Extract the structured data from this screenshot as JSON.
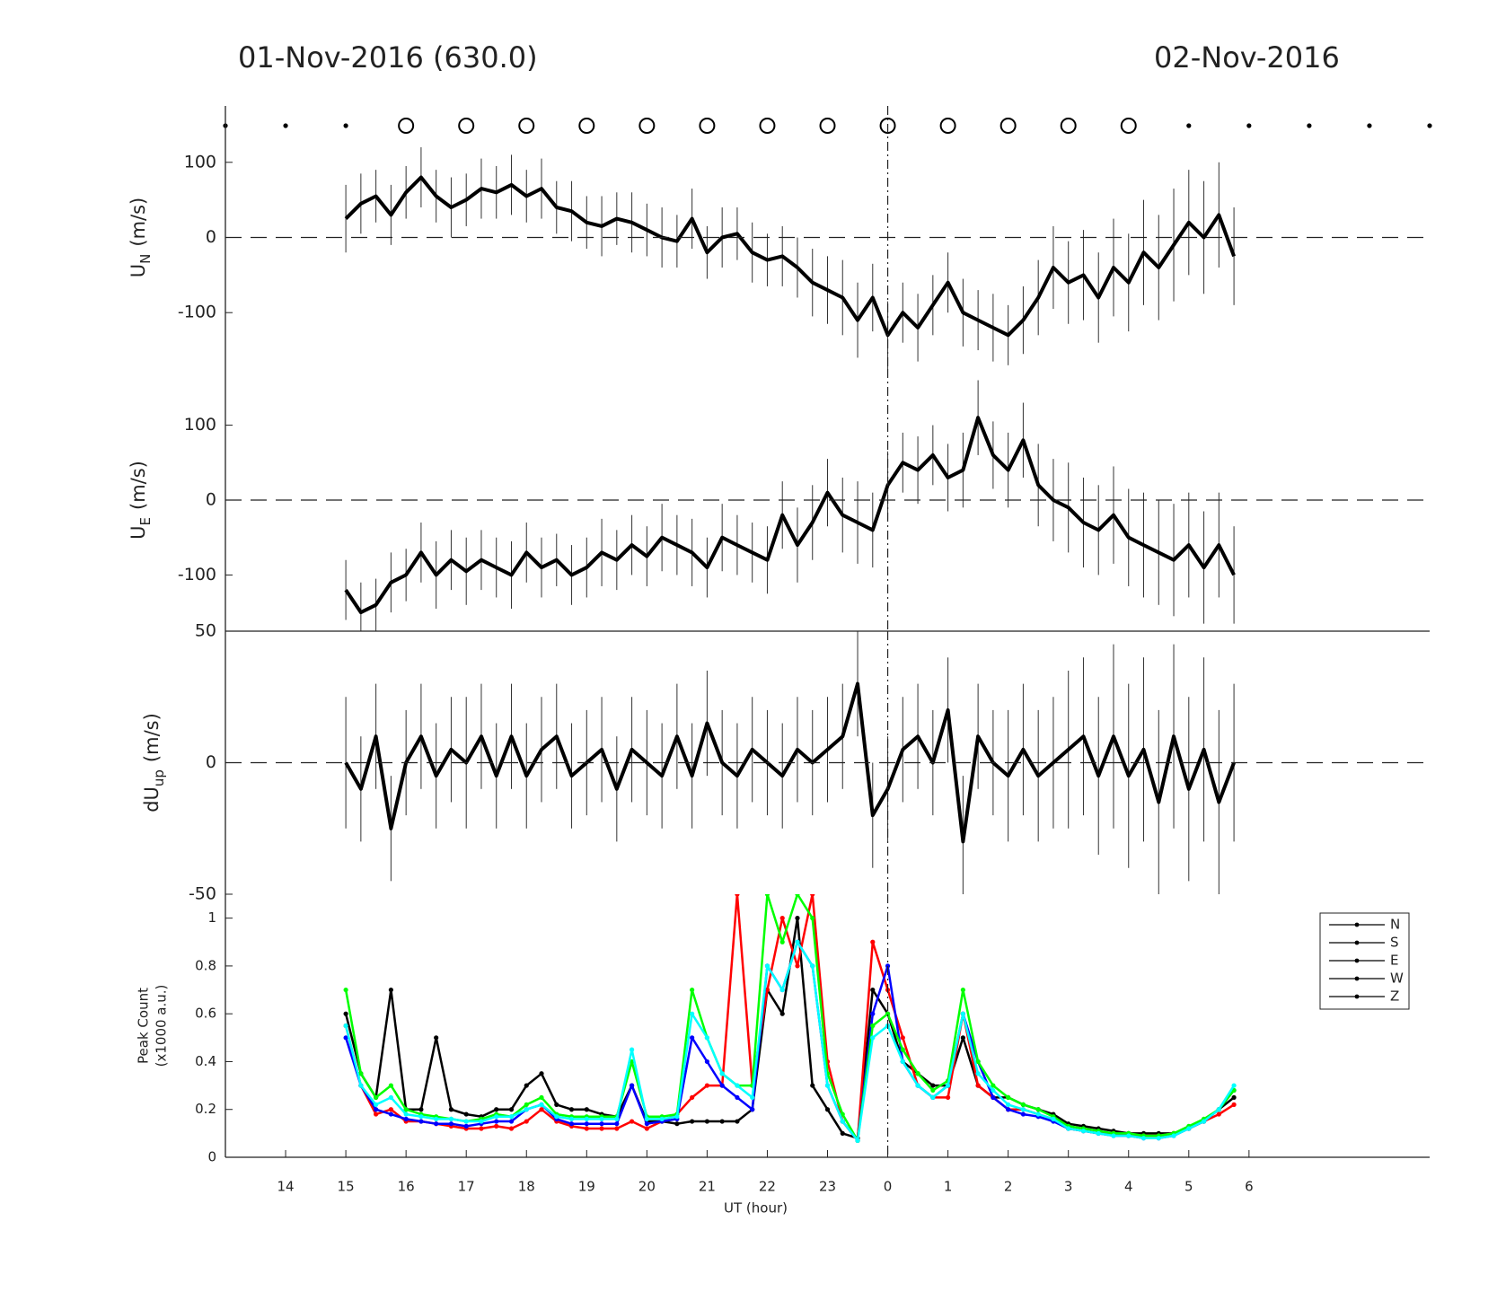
{
  "titles": {
    "left": "01-Nov-2016 (630.0)",
    "right": "02-Nov-2016"
  },
  "top_markers": {
    "dots": [
      13,
      14,
      15,
      29,
      30,
      31,
      32,
      33
    ],
    "circles": [
      16,
      17,
      18,
      19,
      20,
      21,
      22,
      23,
      24,
      25,
      26,
      27,
      28
    ]
  },
  "chart_data": [
    {
      "type": "errorbar-line",
      "ylabel": {
        "main": "U",
        "sub": "N",
        "unit": "(m/s)"
      },
      "xlim": [
        13,
        33
      ],
      "ylim": [
        -175,
        175
      ],
      "yticks": [
        -100,
        0,
        100
      ],
      "hline": 0,
      "vline": 24,
      "x": [
        15,
        15.25,
        15.5,
        15.75,
        16,
        16.25,
        16.5,
        16.75,
        17,
        17.25,
        17.5,
        17.75,
        18,
        18.25,
        18.5,
        18.75,
        19,
        19.25,
        19.5,
        19.75,
        20,
        20.25,
        20.5,
        20.75,
        21,
        21.25,
        21.5,
        21.75,
        22,
        22.25,
        22.5,
        22.75,
        23,
        23.25,
        23.5,
        23.75,
        24,
        24.25,
        24.5,
        24.75,
        25,
        25.25,
        25.5,
        25.75,
        26,
        26.25,
        26.5,
        26.75,
        27,
        27.25,
        27.5,
        27.75,
        28,
        28.25,
        28.5,
        28.75,
        29,
        29.25,
        29.5,
        29.75
      ],
      "series": [
        {
          "color": "#000000",
          "values": [
            25,
            45,
            55,
            30,
            60,
            80,
            55,
            40,
            50,
            65,
            60,
            70,
            55,
            65,
            40,
            35,
            20,
            15,
            25,
            20,
            10,
            0,
            -5,
            25,
            -20,
            0,
            5,
            -20,
            -30,
            -25,
            -40,
            -60,
            -70,
            -80,
            -110,
            -80,
            -130,
            -100,
            -120,
            -90,
            -60,
            -100,
            -110,
            -120,
            -130,
            -110,
            -80,
            -40,
            -60,
            -50,
            -80,
            -40,
            -60,
            -20,
            -40,
            -10,
            20,
            0,
            30,
            -25
          ],
          "errors": [
            45,
            40,
            35,
            40,
            35,
            40,
            35,
            40,
            35,
            40,
            35,
            40,
            35,
            40,
            35,
            40,
            35,
            40,
            35,
            40,
            35,
            40,
            35,
            40,
            35,
            40,
            35,
            40,
            35,
            40,
            40,
            45,
            45,
            50,
            50,
            45,
            45,
            40,
            45,
            40,
            40,
            45,
            40,
            45,
            40,
            45,
            50,
            55,
            55,
            60,
            60,
            65,
            65,
            70,
            70,
            75,
            70,
            75,
            70,
            65
          ]
        }
      ]
    },
    {
      "type": "errorbar-line",
      "ylabel": {
        "main": "U",
        "sub": "E",
        "unit": "(m/s)"
      },
      "xlim": [
        13,
        33
      ],
      "ylim": [
        -175,
        175
      ],
      "yticks": [
        -100,
        0,
        100
      ],
      "hline": 0,
      "vline": 24,
      "x": [
        15,
        15.25,
        15.5,
        15.75,
        16,
        16.25,
        16.5,
        16.75,
        17,
        17.25,
        17.5,
        17.75,
        18,
        18.25,
        18.5,
        18.75,
        19,
        19.25,
        19.5,
        19.75,
        20,
        20.25,
        20.5,
        20.75,
        21,
        21.25,
        21.5,
        21.75,
        22,
        22.25,
        22.5,
        22.75,
        23,
        23.25,
        23.5,
        23.75,
        24,
        24.25,
        24.5,
        24.75,
        25,
        25.25,
        25.5,
        25.75,
        26,
        26.25,
        26.5,
        26.75,
        27,
        27.25,
        27.5,
        27.75,
        28,
        28.25,
        28.5,
        28.75,
        29,
        29.25,
        29.5,
        29.75
      ],
      "series": [
        {
          "color": "#000000",
          "values": [
            -120,
            -150,
            -140,
            -110,
            -100,
            -70,
            -100,
            -80,
            -95,
            -80,
            -90,
            -100,
            -70,
            -90,
            -80,
            -100,
            -90,
            -70,
            -80,
            -60,
            -75,
            -50,
            -60,
            -70,
            -90,
            -50,
            -60,
            -70,
            -80,
            -20,
            -60,
            -30,
            10,
            -20,
            -30,
            -40,
            20,
            50,
            40,
            60,
            30,
            40,
            110,
            60,
            40,
            80,
            20,
            0,
            -10,
            -30,
            -40,
            -20,
            -50,
            -60,
            -70,
            -80,
            -60,
            -90,
            -60,
            -100
          ],
          "errors": [
            40,
            40,
            35,
            40,
            35,
            40,
            45,
            40,
            45,
            40,
            40,
            45,
            40,
            40,
            35,
            40,
            40,
            45,
            40,
            40,
            40,
            45,
            40,
            45,
            40,
            45,
            40,
            40,
            45,
            45,
            50,
            50,
            45,
            50,
            55,
            50,
            45,
            40,
            45,
            40,
            45,
            50,
            50,
            45,
            50,
            50,
            55,
            55,
            60,
            60,
            60,
            65,
            65,
            70,
            70,
            75,
            70,
            75,
            70,
            65
          ]
        }
      ]
    },
    {
      "type": "errorbar-line",
      "ylabel": {
        "main": "dU",
        "sub": "up",
        "unit": "(m/s)"
      },
      "xlim": [
        13,
        33
      ],
      "ylim": [
        -50,
        50
      ],
      "yticks": [
        -50,
        0,
        50
      ],
      "hline": 0,
      "vline": 24,
      "top_axis": true,
      "x": [
        15,
        15.25,
        15.5,
        15.75,
        16,
        16.25,
        16.5,
        16.75,
        17,
        17.25,
        17.5,
        17.75,
        18,
        18.25,
        18.5,
        18.75,
        19,
        19.25,
        19.5,
        19.75,
        20,
        20.25,
        20.5,
        20.75,
        21,
        21.25,
        21.5,
        21.75,
        22,
        22.25,
        22.5,
        22.75,
        23,
        23.25,
        23.5,
        23.75,
        24,
        24.25,
        24.5,
        24.75,
        25,
        25.25,
        25.5,
        25.75,
        26,
        26.25,
        26.5,
        26.75,
        27,
        27.25,
        27.5,
        27.75,
        28,
        28.25,
        28.5,
        28.75,
        29,
        29.25,
        29.5,
        29.75
      ],
      "series": [
        {
          "color": "#000000",
          "values": [
            0,
            -10,
            10,
            -25,
            0,
            10,
            -5,
            5,
            0,
            10,
            -5,
            10,
            -5,
            5,
            10,
            -5,
            0,
            5,
            -10,
            5,
            0,
            -5,
            10,
            -5,
            15,
            0,
            -5,
            5,
            0,
            -5,
            5,
            0,
            5,
            10,
            30,
            -20,
            -10,
            5,
            10,
            0,
            20,
            -30,
            10,
            0,
            -5,
            5,
            -5,
            0,
            5,
            10,
            -5,
            10,
            -5,
            5,
            -15,
            10,
            -10,
            5,
            -15,
            0
          ],
          "errors": [
            25,
            20,
            20,
            20,
            20,
            20,
            20,
            20,
            25,
            20,
            20,
            20,
            20,
            20,
            20,
            20,
            20,
            20,
            20,
            20,
            20,
            20,
            20,
            20,
            20,
            20,
            20,
            20,
            20,
            20,
            20,
            20,
            20,
            20,
            20,
            20,
            20,
            20,
            20,
            20,
            20,
            25,
            20,
            20,
            25,
            25,
            25,
            25,
            30,
            30,
            30,
            35,
            35,
            35,
            35,
            35,
            35,
            35,
            35,
            30
          ]
        }
      ]
    },
    {
      "type": "line",
      "ylabel": {
        "line1": "Peak Count",
        "line2": "(x1000 a.u.)"
      },
      "xlabel": "UT (hour)",
      "xlim": [
        13,
        33
      ],
      "ylim": [
        0,
        1.1
      ],
      "yticks": [
        0,
        0.2,
        0.4,
        0.6,
        0.8,
        1
      ],
      "vline": 24,
      "xticks": [
        14,
        15,
        16,
        17,
        18,
        19,
        20,
        21,
        22,
        23,
        {
          "value": 24,
          "label": "0"
        },
        {
          "value": 25,
          "label": "1"
        },
        {
          "value": 26,
          "label": "2"
        },
        {
          "value": 27,
          "label": "3"
        },
        {
          "value": 28,
          "label": "4"
        },
        {
          "value": 29,
          "label": "5"
        },
        {
          "value": 30,
          "label": "6"
        }
      ],
      "legend": "upper right",
      "legend_color": "#000000",
      "x": [
        15,
        15.25,
        15.5,
        15.75,
        16,
        16.25,
        16.5,
        16.75,
        17,
        17.25,
        17.5,
        17.75,
        18,
        18.25,
        18.5,
        18.75,
        19,
        19.25,
        19.5,
        19.75,
        20,
        20.25,
        20.5,
        20.75,
        21,
        21.25,
        21.5,
        21.75,
        22,
        22.25,
        22.5,
        22.75,
        23,
        23.25,
        23.5,
        23.75,
        24,
        24.25,
        24.5,
        24.75,
        25,
        25.25,
        25.5,
        25.75,
        26,
        26.25,
        26.5,
        26.75,
        27,
        27.25,
        27.5,
        27.75,
        28,
        28.25,
        28.5,
        28.75,
        29,
        29.25,
        29.5,
        29.75
      ],
      "series": [
        {
          "name": "N",
          "color": "#000000",
          "values": [
            0.6,
            0.35,
            0.25,
            0.7,
            0.2,
            0.2,
            0.5,
            0.2,
            0.18,
            0.17,
            0.2,
            0.2,
            0.3,
            0.35,
            0.22,
            0.2,
            0.2,
            0.18,
            0.17,
            0.3,
            0.15,
            0.15,
            0.14,
            0.15,
            0.15,
            0.15,
            0.15,
            0.2,
            0.7,
            0.6,
            1.0,
            0.3,
            0.2,
            0.1,
            0.08,
            0.7,
            0.6,
            0.4,
            0.35,
            0.3,
            0.3,
            0.5,
            0.3,
            0.25,
            0.25,
            0.22,
            0.2,
            0.18,
            0.14,
            0.13,
            0.12,
            0.11,
            0.1,
            0.1,
            0.1,
            0.1,
            0.12,
            0.15,
            0.2,
            0.25
          ]
        },
        {
          "name": "S",
          "color": "#ff0000",
          "values": [
            0.55,
            0.3,
            0.18,
            0.2,
            0.15,
            0.15,
            0.14,
            0.13,
            0.12,
            0.12,
            0.13,
            0.12,
            0.15,
            0.2,
            0.15,
            0.13,
            0.12,
            0.12,
            0.12,
            0.15,
            0.12,
            0.15,
            0.18,
            0.25,
            0.3,
            0.3,
            1.1,
            0.3,
            0.7,
            1.0,
            0.8,
            1.1,
            0.4,
            0.15,
            0.07,
            0.9,
            0.7,
            0.5,
            0.3,
            0.25,
            0.25,
            0.6,
            0.3,
            0.25,
            0.2,
            0.2,
            0.18,
            0.16,
            0.12,
            0.11,
            0.1,
            0.1,
            0.09,
            0.09,
            0.09,
            0.1,
            0.12,
            0.15,
            0.18,
            0.22
          ]
        },
        {
          "name": "E",
          "color": "#0000ff",
          "values": [
            0.5,
            0.3,
            0.2,
            0.18,
            0.16,
            0.15,
            0.14,
            0.14,
            0.13,
            0.14,
            0.15,
            0.15,
            0.2,
            0.22,
            0.16,
            0.14,
            0.14,
            0.14,
            0.14,
            0.3,
            0.14,
            0.15,
            0.16,
            0.5,
            0.4,
            0.3,
            0.25,
            0.2,
            0.8,
            0.7,
            0.9,
            0.8,
            0.3,
            0.15,
            0.07,
            0.6,
            0.8,
            0.4,
            0.3,
            0.25,
            0.3,
            0.6,
            0.4,
            0.25,
            0.2,
            0.18,
            0.17,
            0.15,
            0.12,
            0.11,
            0.1,
            0.09,
            0.09,
            0.08,
            0.08,
            0.09,
            0.12,
            0.15,
            0.2,
            0.28
          ]
        },
        {
          "name": "W",
          "color": "#00ff00",
          "values": [
            0.7,
            0.35,
            0.25,
            0.3,
            0.2,
            0.18,
            0.17,
            0.16,
            0.15,
            0.16,
            0.18,
            0.17,
            0.22,
            0.25,
            0.18,
            0.17,
            0.17,
            0.17,
            0.17,
            0.4,
            0.17,
            0.17,
            0.18,
            0.7,
            0.5,
            0.35,
            0.3,
            0.3,
            1.1,
            0.9,
            1.1,
            1.0,
            0.35,
            0.18,
            0.07,
            0.55,
            0.6,
            0.45,
            0.35,
            0.28,
            0.32,
            0.7,
            0.4,
            0.3,
            0.25,
            0.22,
            0.2,
            0.17,
            0.13,
            0.12,
            0.11,
            0.1,
            0.1,
            0.09,
            0.09,
            0.1,
            0.13,
            0.16,
            0.2,
            0.28
          ]
        },
        {
          "name": "Z",
          "color": "#00ffff",
          "values": [
            0.55,
            0.3,
            0.22,
            0.25,
            0.18,
            0.17,
            0.16,
            0.16,
            0.15,
            0.15,
            0.17,
            0.17,
            0.2,
            0.22,
            0.17,
            0.16,
            0.16,
            0.16,
            0.16,
            0.45,
            0.16,
            0.16,
            0.17,
            0.6,
            0.5,
            0.35,
            0.3,
            0.25,
            0.8,
            0.7,
            0.9,
            0.8,
            0.3,
            0.15,
            0.07,
            0.5,
            0.55,
            0.4,
            0.3,
            0.25,
            0.3,
            0.6,
            0.35,
            0.28,
            0.22,
            0.2,
            0.18,
            0.16,
            0.12,
            0.11,
            0.1,
            0.09,
            0.09,
            0.08,
            0.08,
            0.09,
            0.12,
            0.15,
            0.2,
            0.3
          ]
        }
      ]
    }
  ]
}
